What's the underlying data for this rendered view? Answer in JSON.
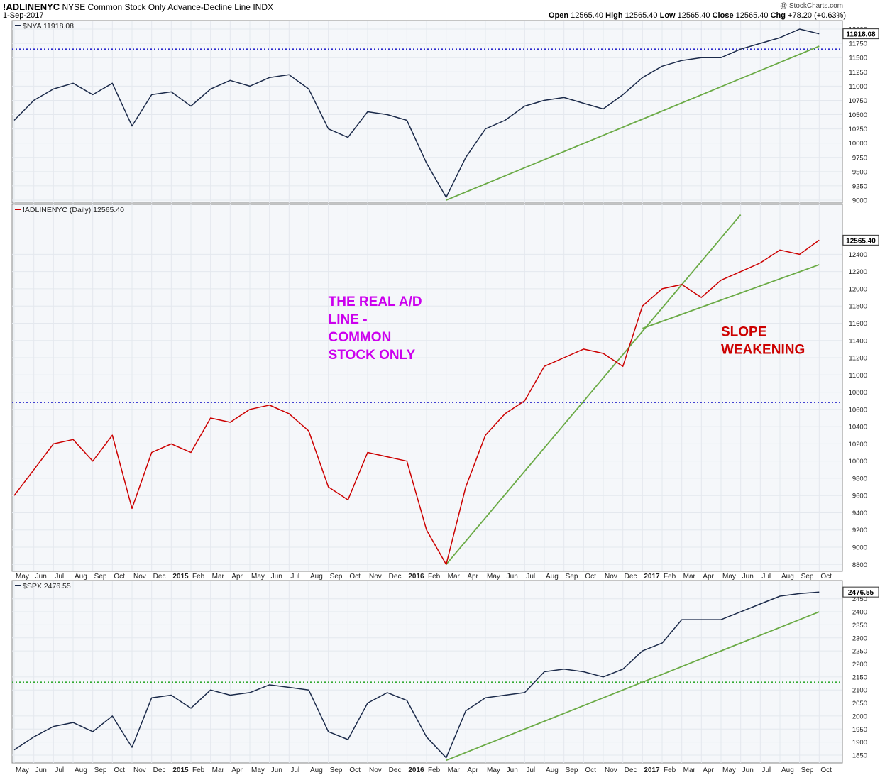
{
  "header": {
    "symbol": "!ADLINENYC",
    "name": "NYSE Common Stock Only Advance-Decline Line",
    "exchange": "INDX",
    "date": "1-Sep-2017",
    "credit": "@ StockCharts.com",
    "open_label": "Open",
    "open": "12565.40",
    "high_label": "High",
    "high": "12565.40",
    "low_label": "Low",
    "low": "12565.40",
    "close_label": "Close",
    "close": "12565.40",
    "chg_label": "Chg",
    "chg": "+78.20 (+0.63%)"
  },
  "colors": {
    "dark_line": "#1b2a4a",
    "red_line": "#cc0000",
    "trend": "#6aaa45",
    "dotted_blue": "#2a2acc",
    "dotted_green": "#33aa33",
    "annot_purple": "#cc00ee",
    "annot_red": "#cc0000"
  },
  "x_months": [
    "May",
    "Jun",
    "Jul",
    "Aug",
    "Sep",
    "Oct",
    "Nov",
    "Dec",
    "2015",
    "Feb",
    "Mar",
    "Apr",
    "May",
    "Jun",
    "Jul",
    "Aug",
    "Sep",
    "Oct",
    "Nov",
    "Dec",
    "2016",
    "Feb",
    "Mar",
    "Apr",
    "May",
    "Jun",
    "Jul",
    "Aug",
    "Sep",
    "Oct",
    "Nov",
    "Dec",
    "2017",
    "Feb",
    "Mar",
    "Apr",
    "May",
    "Jun",
    "Jul",
    "Aug",
    "Sep",
    "Oct"
  ],
  "chart_data": [
    {
      "type": "line",
      "legend": "$NYA 11918.08",
      "last_value": "11918.08",
      "ylim": [
        8950,
        12150
      ],
      "yticks": [
        9000,
        9250,
        9500,
        9750,
        10000,
        10250,
        10500,
        10750,
        11000,
        11250,
        11500,
        11750,
        12000
      ],
      "x": [
        "2014-04",
        "2014-05",
        "2014-06",
        "2014-07",
        "2014-08",
        "2014-09",
        "2014-10",
        "2014-11",
        "2014-12",
        "2015-01",
        "2015-02",
        "2015-03",
        "2015-04",
        "2015-05",
        "2015-06",
        "2015-07",
        "2015-08",
        "2015-09",
        "2015-10",
        "2015-11",
        "2015-12",
        "2016-01",
        "2016-02",
        "2016-03",
        "2016-04",
        "2016-05",
        "2016-06",
        "2016-07",
        "2016-08",
        "2016-09",
        "2016-10",
        "2016-11",
        "2016-12",
        "2017-01",
        "2017-02",
        "2017-03",
        "2017-04",
        "2017-05",
        "2017-06",
        "2017-07",
        "2017-08",
        "2017-09"
      ],
      "values": [
        10400,
        10750,
        10950,
        11050,
        10850,
        11050,
        10300,
        10850,
        10900,
        10650,
        10950,
        11100,
        11000,
        11150,
        11200,
        10950,
        10250,
        10100,
        10550,
        10500,
        10400,
        9650,
        9050,
        9750,
        10250,
        10400,
        10650,
        10750,
        10800,
        10700,
        10600,
        10850,
        11150,
        11350,
        11450,
        11500,
        11500,
        11650,
        11750,
        11850,
        12000,
        11918
      ],
      "hline": 11650,
      "trendline": {
        "x": [
          "2016-02",
          "2017-09"
        ],
        "y": [
          9000,
          11700
        ]
      }
    },
    {
      "type": "line",
      "legend": "!ADLINENYC (Daily) 12565.40",
      "last_value": "12565.40",
      "ylim": [
        8720,
        12980
      ],
      "yticks": [
        8800,
        9000,
        9200,
        9400,
        9600,
        9800,
        10000,
        10200,
        10400,
        10600,
        10800,
        11000,
        11200,
        11400,
        11600,
        11800,
        12000,
        12200,
        12400
      ],
      "x": [
        "2014-04",
        "2014-05",
        "2014-06",
        "2014-07",
        "2014-08",
        "2014-09",
        "2014-10",
        "2014-11",
        "2014-12",
        "2015-01",
        "2015-02",
        "2015-03",
        "2015-04",
        "2015-05",
        "2015-06",
        "2015-07",
        "2015-08",
        "2015-09",
        "2015-10",
        "2015-11",
        "2015-12",
        "2016-01",
        "2016-02",
        "2016-03",
        "2016-04",
        "2016-05",
        "2016-06",
        "2016-07",
        "2016-08",
        "2016-09",
        "2016-10",
        "2016-11",
        "2016-12",
        "2017-01",
        "2017-02",
        "2017-03",
        "2017-04",
        "2017-05",
        "2017-06",
        "2017-07",
        "2017-08",
        "2017-09"
      ],
      "values": [
        9600,
        9900,
        10200,
        10250,
        10000,
        10300,
        9450,
        10100,
        10200,
        10100,
        10500,
        10450,
        10600,
        10650,
        10550,
        10350,
        9700,
        9550,
        10100,
        10050,
        10000,
        9200,
        8800,
        9700,
        10300,
        10550,
        10700,
        11100,
        11200,
        11300,
        11250,
        11100,
        11800,
        12000,
        12050,
        11900,
        12100,
        12200,
        12300,
        12450,
        12400,
        12565
      ],
      "hline": 10680,
      "trendlines": [
        {
          "x": [
            "2016-02",
            "2017-05"
          ],
          "y": [
            8800,
            12860
          ]
        },
        {
          "x": [
            "2016-12",
            "2017-09"
          ],
          "y": [
            11540,
            12280
          ]
        }
      ],
      "annotations": [
        {
          "lines": [
            "THE REAL A/D",
            "LINE -",
            "COMMON",
            "STOCK ONLY"
          ],
          "x": "2015-08",
          "y": 11800,
          "color": "#cc00ee"
        },
        {
          "lines": [
            "SLOPE",
            "WEAKENING"
          ],
          "x": "2017-04",
          "y": 11450,
          "color": "#cc0000"
        }
      ]
    },
    {
      "type": "line",
      "legend": "$SPX 2476.55",
      "last_value": "2476.55",
      "ylim": [
        1820,
        2520
      ],
      "yticks": [
        1850,
        1900,
        1950,
        2000,
        2050,
        2100,
        2150,
        2200,
        2250,
        2300,
        2350,
        2400,
        2450
      ],
      "x": [
        "2014-04",
        "2014-05",
        "2014-06",
        "2014-07",
        "2014-08",
        "2014-09",
        "2014-10",
        "2014-11",
        "2014-12",
        "2015-01",
        "2015-02",
        "2015-03",
        "2015-04",
        "2015-05",
        "2015-06",
        "2015-07",
        "2015-08",
        "2015-09",
        "2015-10",
        "2015-11",
        "2015-12",
        "2016-01",
        "2016-02",
        "2016-03",
        "2016-04",
        "2016-05",
        "2016-06",
        "2016-07",
        "2016-08",
        "2016-09",
        "2016-10",
        "2016-11",
        "2016-12",
        "2017-01",
        "2017-02",
        "2017-03",
        "2017-04",
        "2017-05",
        "2017-06",
        "2017-07",
        "2017-08",
        "2017-09"
      ],
      "values": [
        1870,
        1920,
        1960,
        1975,
        1940,
        2000,
        1880,
        2070,
        2080,
        2030,
        2100,
        2080,
        2090,
        2120,
        2110,
        2100,
        1940,
        1910,
        2050,
        2090,
        2060,
        1920,
        1840,
        2020,
        2070,
        2080,
        2090,
        2170,
        2180,
        2170,
        2150,
        2180,
        2250,
        2280,
        2370,
        2370,
        2370,
        2400,
        2430,
        2460,
        2470,
        2476
      ],
      "hline": 2130,
      "trendline": {
        "x": [
          "2016-02",
          "2017-09"
        ],
        "y": [
          1830,
          2400
        ]
      }
    }
  ]
}
